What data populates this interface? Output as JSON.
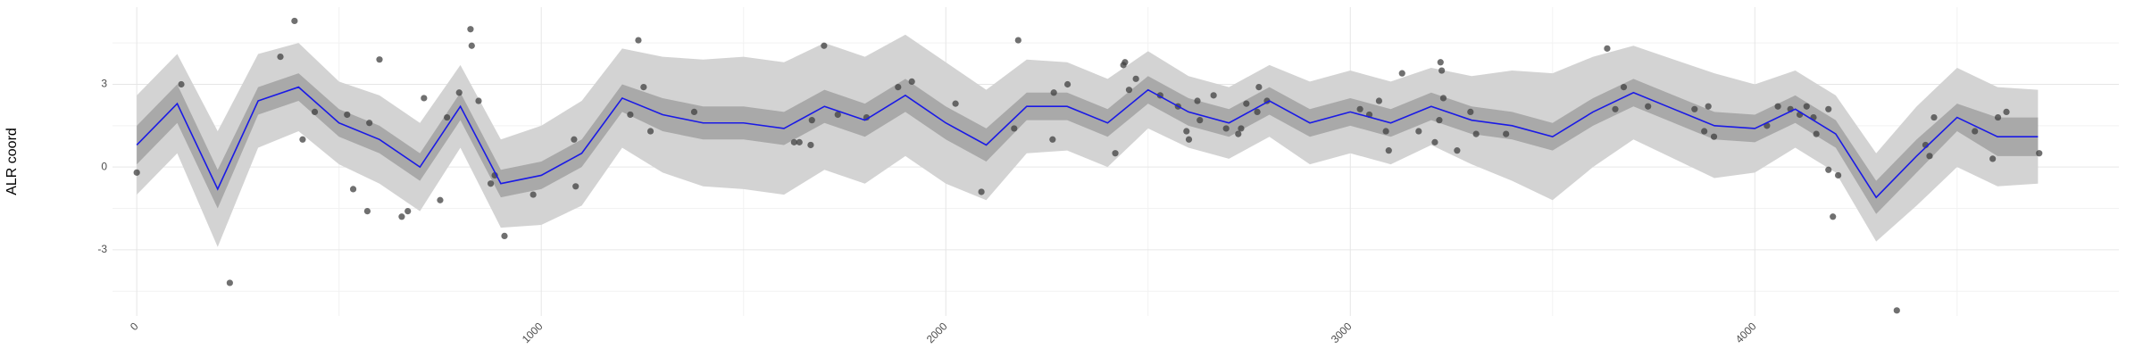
{
  "chart_data": {
    "type": "line",
    "y_label": "ALR coord",
    "xlim": [
      -60,
      4900
    ],
    "ylim": [
      -5.4,
      5.8
    ],
    "xticks": [
      0,
      1000,
      2000,
      3000,
      4000
    ],
    "yticks": [
      -3,
      0,
      3
    ],
    "grid": true,
    "x": [
      0,
      100,
      200,
      300,
      400,
      500,
      600,
      700,
      800,
      900,
      1000,
      1100,
      1200,
      1300,
      1400,
      1500,
      1600,
      1700,
      1800,
      1900,
      2000,
      2100,
      2200,
      2300,
      2400,
      2500,
      2600,
      2700,
      2800,
      2900,
      3000,
      3100,
      3200,
      3300,
      3400,
      3500,
      3600,
      3700,
      3800,
      3900,
      4000,
      4100,
      4200,
      4300,
      4400,
      4500,
      4600,
      4700
    ],
    "line": {
      "color": "#1a1ae6",
      "values": [
        0.8,
        2.3,
        -0.8,
        2.4,
        2.9,
        1.6,
        1.0,
        0.0,
        2.2,
        -0.6,
        -0.3,
        0.5,
        2.5,
        1.9,
        1.6,
        1.6,
        1.4,
        2.2,
        1.7,
        2.6,
        1.6,
        0.8,
        2.2,
        2.2,
        1.6,
        2.8,
        2.0,
        1.6,
        2.4,
        1.6,
        2.0,
        1.6,
        2.2,
        1.7,
        1.5,
        1.1,
        2.0,
        2.7,
        2.1,
        1.5,
        1.4,
        2.1,
        1.2,
        -1.1,
        0.4,
        1.8,
        1.1,
        1.1
      ]
    },
    "bands": [
      {
        "color": "#d3d3d3",
        "upper": [
          2.6,
          4.1,
          1.3,
          4.1,
          4.5,
          3.1,
          2.6,
          1.6,
          3.7,
          1.0,
          1.5,
          2.4,
          4.3,
          4.0,
          3.9,
          4.0,
          3.8,
          4.5,
          4.0,
          4.8,
          3.8,
          2.8,
          3.9,
          3.8,
          3.2,
          4.2,
          3.3,
          2.9,
          3.7,
          3.1,
          3.5,
          3.1,
          3.6,
          3.3,
          3.5,
          3.4,
          4.0,
          4.4,
          3.9,
          3.4,
          3.0,
          3.5,
          2.6,
          0.5,
          2.2,
          3.6,
          2.9,
          2.8
        ],
        "lower": [
          -1.0,
          0.5,
          -2.9,
          0.7,
          1.3,
          0.1,
          -0.6,
          -1.6,
          0.7,
          -2.2,
          -2.1,
          -1.4,
          0.7,
          -0.2,
          -0.7,
          -0.8,
          -1.0,
          -0.1,
          -0.6,
          0.4,
          -0.6,
          -1.2,
          0.5,
          0.6,
          0.0,
          1.4,
          0.7,
          0.3,
          1.1,
          0.1,
          0.5,
          0.1,
          0.8,
          0.1,
          -0.5,
          -1.2,
          0.0,
          1.0,
          0.3,
          -0.4,
          -0.2,
          0.7,
          -0.2,
          -2.7,
          -1.4,
          0.0,
          -0.7,
          -0.6
        ]
      },
      {
        "color": "#a9a9a9",
        "upper": [
          1.5,
          3.0,
          -0.1,
          2.9,
          3.4,
          2.1,
          1.5,
          0.5,
          2.7,
          -0.1,
          0.2,
          1.0,
          3.0,
          2.5,
          2.2,
          2.2,
          2.0,
          2.8,
          2.3,
          3.2,
          2.2,
          1.4,
          2.7,
          2.7,
          2.1,
          3.3,
          2.5,
          2.1,
          2.9,
          2.1,
          2.5,
          2.1,
          2.7,
          2.2,
          2.0,
          1.6,
          2.5,
          3.2,
          2.6,
          2.0,
          1.9,
          2.6,
          1.7,
          -0.5,
          1.0,
          2.3,
          1.8,
          1.8
        ],
        "lower": [
          0.1,
          1.6,
          -1.5,
          1.9,
          2.4,
          1.1,
          0.5,
          -0.5,
          1.7,
          -1.1,
          -0.8,
          0.0,
          2.0,
          1.3,
          1.0,
          1.0,
          0.8,
          1.6,
          1.1,
          2.0,
          1.0,
          0.2,
          1.7,
          1.7,
          1.1,
          2.3,
          1.5,
          1.1,
          1.9,
          1.1,
          1.5,
          1.1,
          1.7,
          1.2,
          1.0,
          0.6,
          1.5,
          2.2,
          1.6,
          1.0,
          0.9,
          1.6,
          0.7,
          -1.7,
          -0.2,
          1.3,
          0.4,
          0.4
        ]
      }
    ],
    "points": {
      "color": "#404040",
      "x": [
        0,
        110,
        230,
        355,
        390,
        410,
        440,
        520,
        535,
        570,
        575,
        600,
        655,
        670,
        710,
        750,
        767,
        797,
        825,
        828,
        845,
        875,
        885,
        909,
        980,
        1081,
        1085,
        1220,
        1240,
        1253,
        1270,
        1378,
        1625,
        1638,
        1666,
        1669,
        1699,
        1733,
        1804,
        1882,
        1916,
        2024,
        2088,
        2169,
        2179,
        2264,
        2267,
        2301,
        2419,
        2439,
        2443,
        2453,
        2470,
        2530,
        2574,
        2595,
        2601,
        2622,
        2628,
        2662,
        2693,
        2723,
        2730,
        2743,
        2770,
        2774,
        2794,
        3024,
        3047,
        3071,
        3088,
        3095,
        3128,
        3169,
        3209,
        3220,
        3223,
        3226,
        3230,
        3264,
        3297,
        3311,
        3385,
        3635,
        3655,
        3676,
        3736,
        3851,
        3875,
        3885,
        3899,
        4030,
        4057,
        4088,
        4111,
        4128,
        4145,
        4152,
        4182,
        4182,
        4193,
        4206,
        4351,
        4422,
        4432,
        4443,
        4544,
        4588,
        4601,
        4622,
        4703
      ],
      "y": [
        -0.2,
        3.0,
        -4.2,
        4.0,
        5.3,
        1.0,
        2.0,
        1.9,
        -0.8,
        -1.6,
        1.6,
        3.9,
        -1.8,
        -1.6,
        2.5,
        -1.2,
        1.8,
        2.7,
        5.0,
        4.4,
        2.4,
        -0.6,
        -0.3,
        -2.5,
        -1.0,
        1.0,
        -0.7,
        1.9,
        4.6,
        2.9,
        1.3,
        2.0,
        0.9,
        0.9,
        0.8,
        1.7,
        4.4,
        1.9,
        1.8,
        2.9,
        3.1,
        2.3,
        -0.9,
        1.4,
        4.6,
        1.0,
        2.7,
        3.0,
        0.5,
        3.7,
        3.8,
        2.8,
        3.2,
        2.6,
        2.2,
        1.3,
        1.0,
        2.4,
        1.7,
        2.6,
        1.4,
        1.2,
        1.4,
        2.3,
        2.0,
        2.9,
        2.4,
        2.1,
        1.9,
        2.4,
        1.3,
        0.6,
        3.4,
        1.3,
        0.9,
        1.7,
        3.8,
        3.5,
        2.5,
        0.6,
        2.0,
        1.2,
        1.2,
        4.3,
        2.1,
        2.9,
        2.2,
        2.1,
        1.3,
        2.2,
        1.1,
        1.5,
        2.2,
        2.1,
        1.9,
        2.2,
        1.8,
        1.2,
        2.1,
        -0.1,
        -1.8,
        -0.3,
        -5.2,
        0.8,
        0.4,
        1.8,
        1.3,
        0.3,
        1.8,
        2.0,
        0.5
      ]
    }
  }
}
